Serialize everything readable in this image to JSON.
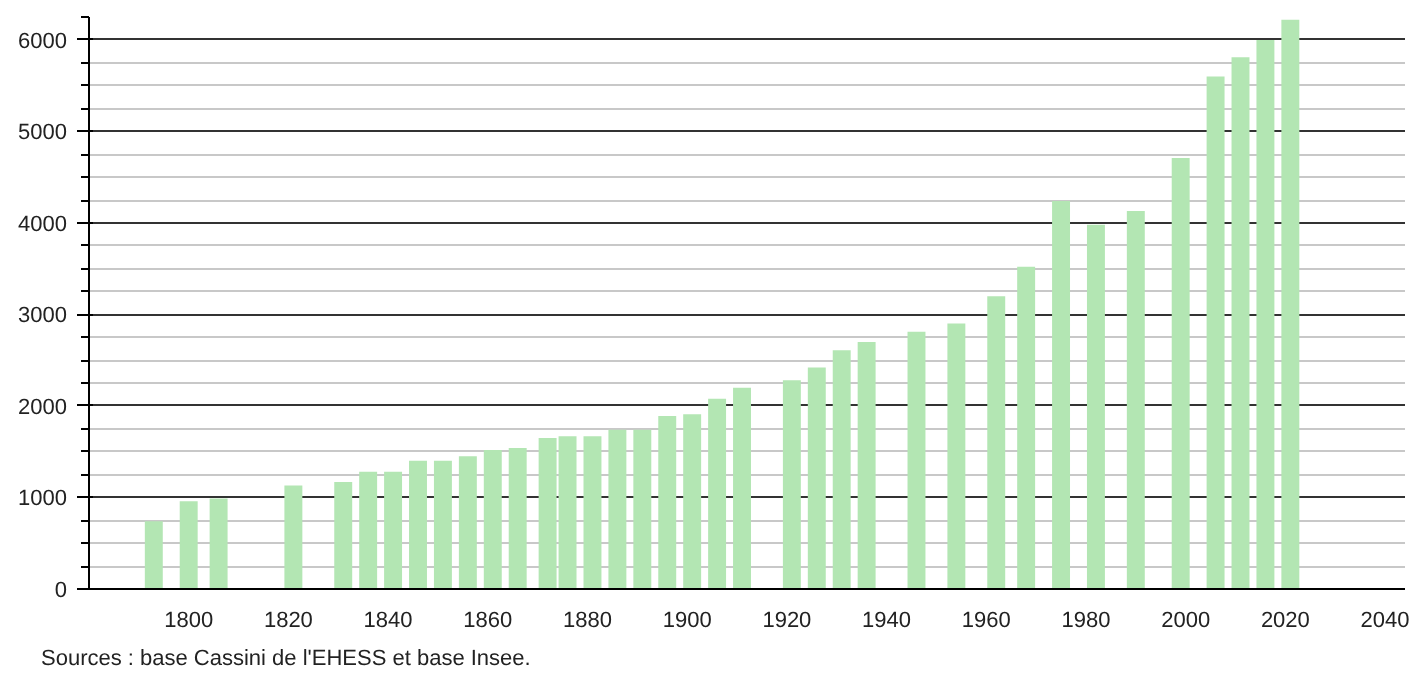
{
  "chart_data": {
    "type": "bar",
    "x": [
      1793,
      1800,
      1806,
      1821,
      1831,
      1836,
      1841,
      1846,
      1851,
      1856,
      1861,
      1866,
      1872,
      1876,
      1881,
      1886,
      1891,
      1896,
      1901,
      1906,
      1911,
      1921,
      1926,
      1931,
      1936,
      1946,
      1954,
      1962,
      1968,
      1975,
      1982,
      1990,
      1999,
      2006,
      2011,
      2016,
      2021
    ],
    "values": [
      740,
      960,
      990,
      1130,
      1170,
      1280,
      1280,
      1400,
      1400,
      1450,
      1520,
      1540,
      1650,
      1670,
      1670,
      1740,
      1740,
      1890,
      1910,
      2080,
      2200,
      2280,
      2420,
      2610,
      2700,
      2810,
      2900,
      3200,
      3520,
      4240,
      3980,
      4130,
      4710,
      5600,
      5810,
      6000,
      6220
    ],
    "color": "#b3e6b3",
    "xlim": [
      1780,
      2044
    ],
    "xticks": [
      1800,
      1820,
      1840,
      1860,
      1880,
      1900,
      1920,
      1940,
      1960,
      1980,
      2000,
      2020,
      2040
    ],
    "ylim": [
      0,
      6250
    ],
    "yticks": [
      0,
      1000,
      2000,
      3000,
      4000,
      5000,
      6000
    ],
    "grid": "y",
    "annotations": [
      "Sources : base Cassini de l'EHESS et base Insee."
    ]
  }
}
